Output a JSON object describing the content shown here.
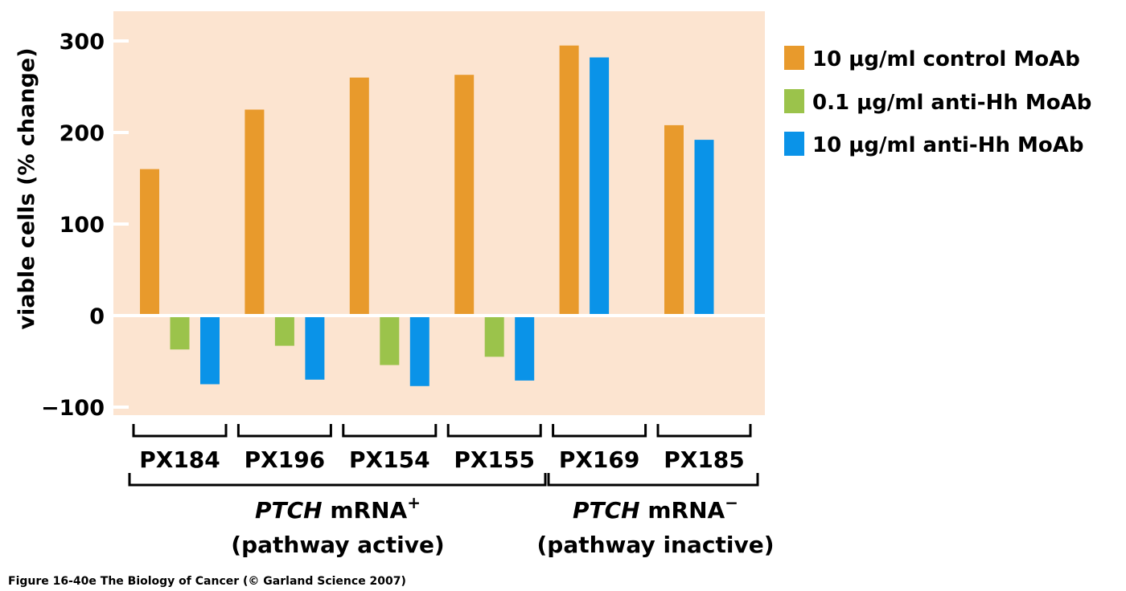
{
  "chart_data": {
    "type": "bar",
    "title": "",
    "xlabel": "",
    "ylabel": "viable cells (% change)",
    "ylim": [
      -110,
      335
    ],
    "yticks": [
      300,
      200,
      100,
      0,
      -100
    ],
    "ytick_labels": [
      "300",
      "200",
      "100",
      "0",
      "−100"
    ],
    "grid": false,
    "background_color": "#FCE4D0",
    "legend_position": "right",
    "categories": [
      "PX184",
      "PX196",
      "PX154",
      "PX155",
      "PX169",
      "PX185"
    ],
    "series": [
      {
        "name": "10 μg/ml control MoAb",
        "color": "#E89A2C",
        "values": [
          160,
          225,
          260,
          263,
          295,
          208
        ]
      },
      {
        "name": "0.1 μg/ml anti-Hh MoAb",
        "color": "#9BC34B",
        "values": [
          -37,
          -33,
          -54,
          -45,
          null,
          null
        ]
      },
      {
        "name": "10 μg/ml anti-Hh MoAb",
        "color": "#0A93E8",
        "values": [
          -75,
          -70,
          -77,
          -71,
          282,
          192
        ]
      }
    ],
    "groups": [
      {
        "label_italic": "PTCH",
        "label_rest": " mRNA",
        "superscript": "+",
        "sublabel": "(pathway active)",
        "categories": [
          "PX184",
          "PX196",
          "PX154",
          "PX155"
        ]
      },
      {
        "label_italic": "PTCH",
        "label_rest": " mRNA",
        "superscript": "−",
        "sublabel": "(pathway inactive)",
        "categories": [
          "PX169",
          "PX185"
        ]
      }
    ]
  },
  "caption": "Figure 16-40e  The Biology of Cancer (© Garland Science 2007)"
}
